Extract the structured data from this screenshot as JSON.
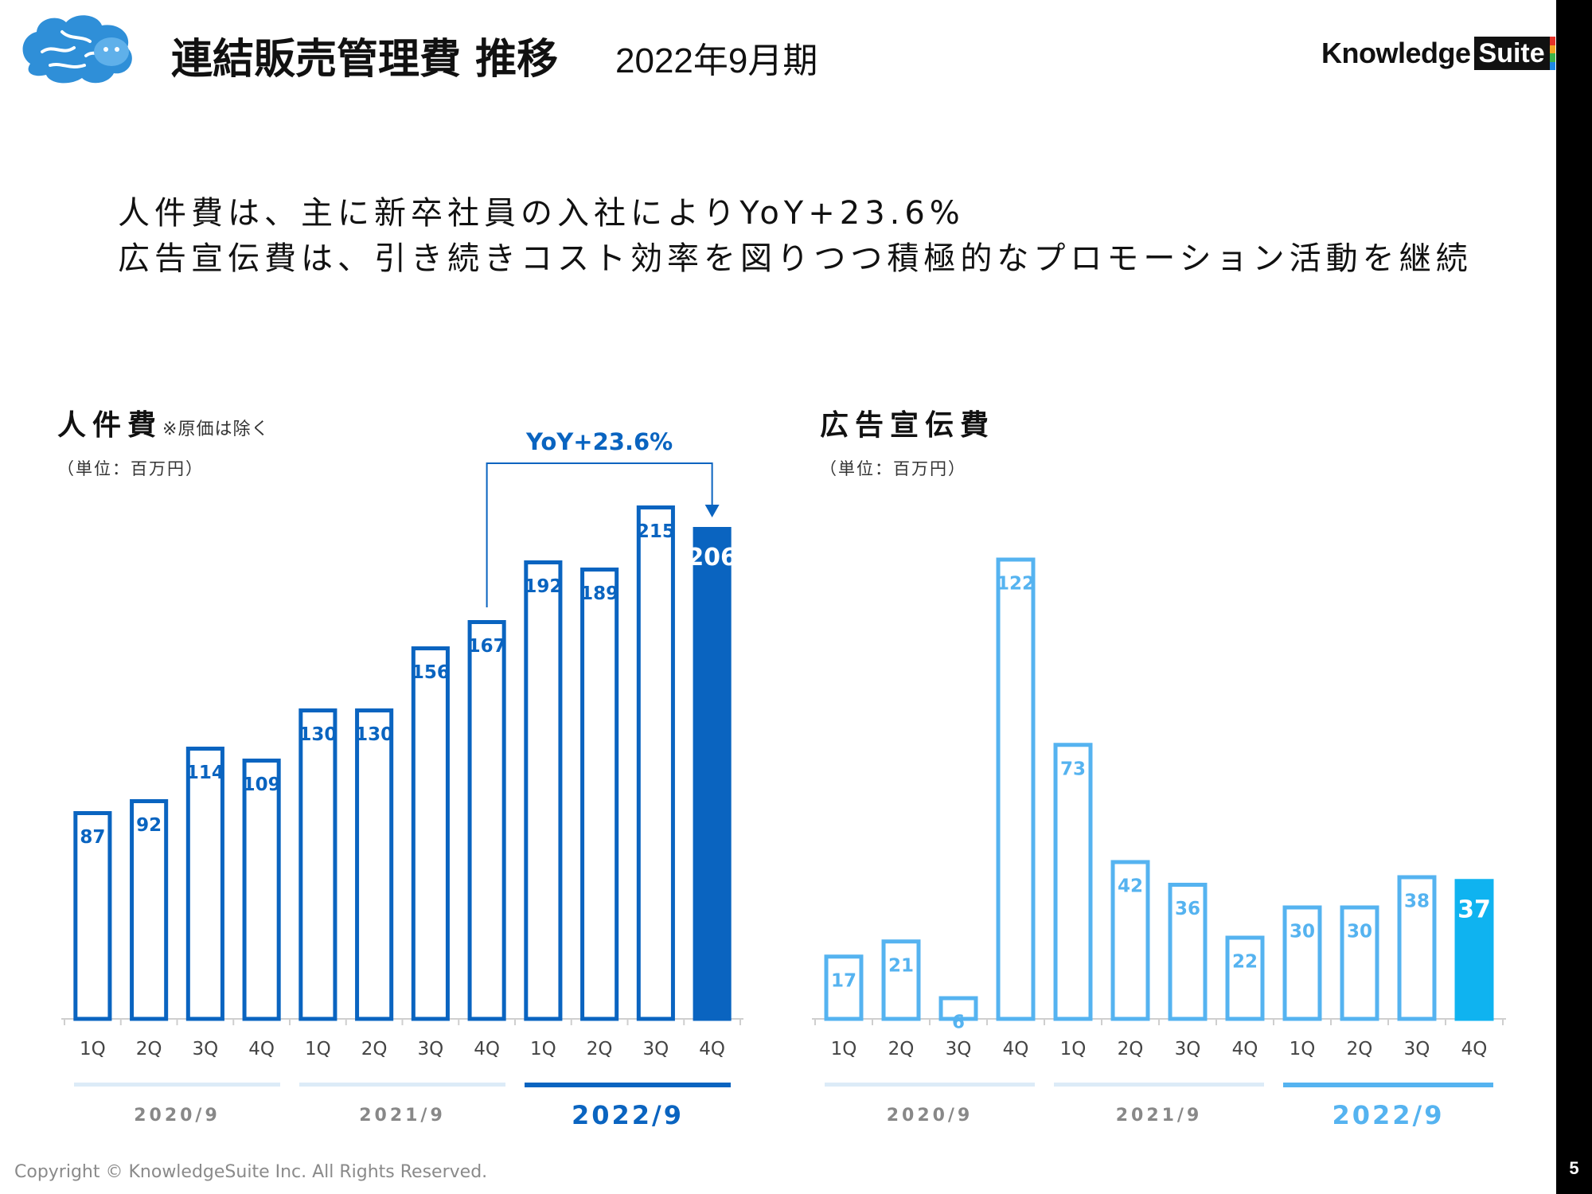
{
  "header": {
    "title": "連結販売管理費 推移",
    "subtitle": "2022年9月期",
    "brand_word": "Knowledge",
    "brand_box": "Suite",
    "brand_stripe_colors": [
      "#e63329",
      "#f5a623",
      "#3cb44b",
      "#1e88e5"
    ]
  },
  "headline": {
    "line1": "人件費は、主に新卒社員の入社によりYoY+23.6%",
    "line2": "広告宣伝費は、引き続きコスト効率を図りつつ積極的なプロモーション活動を継続"
  },
  "footer": {
    "copyright": "Copyright © KnowledgeSuite Inc. All Rights Reserved.",
    "page_number": "5"
  },
  "charts": {
    "personnel": {
      "title": "人件費",
      "note": "※原価は除く",
      "unit": "（単位：百万円）"
    },
    "ad": {
      "title": "広告宣伝費",
      "unit": "（単位：百万円）"
    }
  },
  "colors": {
    "personnel": "#0a64c0",
    "ad": "#55b3f0",
    "ad_highlight": "#0fb3f0",
    "year_bar_inactive": "#dcebf7",
    "axis_label": "#444444",
    "year_inactive_text": "#888888"
  },
  "chart_data": [
    {
      "type": "bar",
      "title": "人件費",
      "categories": [
        "1Q",
        "2Q",
        "3Q",
        "4Q",
        "1Q",
        "2Q",
        "3Q",
        "4Q",
        "1Q",
        "2Q",
        "3Q",
        "4Q"
      ],
      "values": [
        87,
        92,
        114,
        109,
        130,
        130,
        156,
        167,
        192,
        189,
        215,
        206
      ],
      "groups": [
        "2020/9",
        "2021/9",
        "2022/9"
      ],
      "highlight_index": 11,
      "annotation": "YoY+23.6%",
      "annotation_from_index": 7,
      "annotation_to_index": 11
    },
    {
      "type": "bar",
      "title": "広告宣伝費",
      "categories": [
        "1Q",
        "2Q",
        "3Q",
        "4Q",
        "1Q",
        "2Q",
        "3Q",
        "4Q",
        "1Q",
        "2Q",
        "3Q",
        "4Q"
      ],
      "values": [
        17,
        21,
        6,
        122,
        73,
        42,
        36,
        22,
        30,
        30,
        38,
        37
      ],
      "groups": [
        "2020/9",
        "2021/9",
        "2022/9"
      ],
      "highlight_index": 11
    }
  ]
}
